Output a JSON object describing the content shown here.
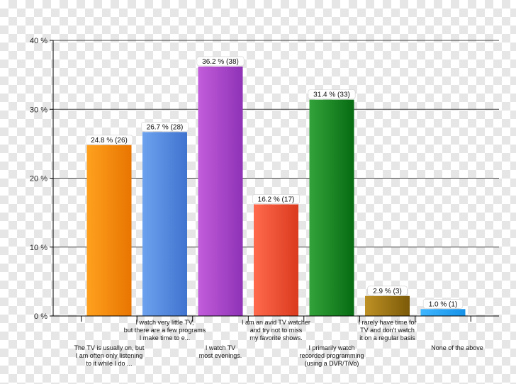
{
  "chart_data": {
    "type": "bar",
    "categories": [
      "The TV is usually on, but I am often only listening to it while I do ...",
      "I watch very little TV, but there are a few programs I make time to e...",
      "I watch TV most evenings.",
      "I am an avid TV watcher and try not to miss my favorite shows.",
      "I primarily watch recorded programming (using a DVR/TiVo)",
      "I rarely have time for TV and don't watch it on a regular basis",
      "None of the above"
    ],
    "category_lines": [
      [
        "The TV is usually on, but",
        "I am often only listening",
        "to it while I do ..."
      ],
      [
        "I watch very little TV,",
        "but there are a few programs",
        "I make time to e..."
      ],
      [
        "I watch TV",
        "most evenings."
      ],
      [
        "I am an avid TV watcher",
        "and try not to miss",
        "my favorite shows."
      ],
      [
        "I primarily watch",
        "recorded programming",
        "(using a DVR/TiVo)"
      ],
      [
        "I rarely have time for",
        "TV and don't watch",
        "it on a regular basis"
      ],
      [
        "None of the above"
      ]
    ],
    "label_row": [
      "low",
      "high",
      "low",
      "high",
      "low",
      "high",
      "low"
    ],
    "values": [
      24.8,
      26.7,
      36.2,
      16.2,
      31.4,
      2.9,
      1.0
    ],
    "counts": [
      26,
      28,
      38,
      17,
      33,
      3,
      1
    ],
    "data_labels": [
      "24.8 % (26)",
      "26.7 % (28)",
      "36.2 % (38)",
      "16.2 % (17)",
      "31.4 % (33)",
      "2.9 % (3)",
      "1.0 % (1)"
    ],
    "colors": [
      [
        "#ffa11f",
        "#e87500"
      ],
      [
        "#6da2ee",
        "#3f73cf"
      ],
      [
        "#c25ddb",
        "#8f32b6"
      ],
      [
        "#ff6a4d",
        "#da3a1e"
      ],
      [
        "#33a33a",
        "#076b12"
      ],
      [
        "#bf9125",
        "#7b5a08"
      ],
      [
        "#3fb6ff",
        "#1591e8"
      ]
    ],
    "ylim": [
      0,
      40
    ],
    "y_ticks": [
      0,
      10,
      20,
      30,
      40
    ],
    "y_tick_labels": [
      "0 %",
      "10 %",
      "20 %",
      "30 %",
      "40 %"
    ],
    "grid": true,
    "title": "",
    "xlabel": "",
    "ylabel": ""
  }
}
